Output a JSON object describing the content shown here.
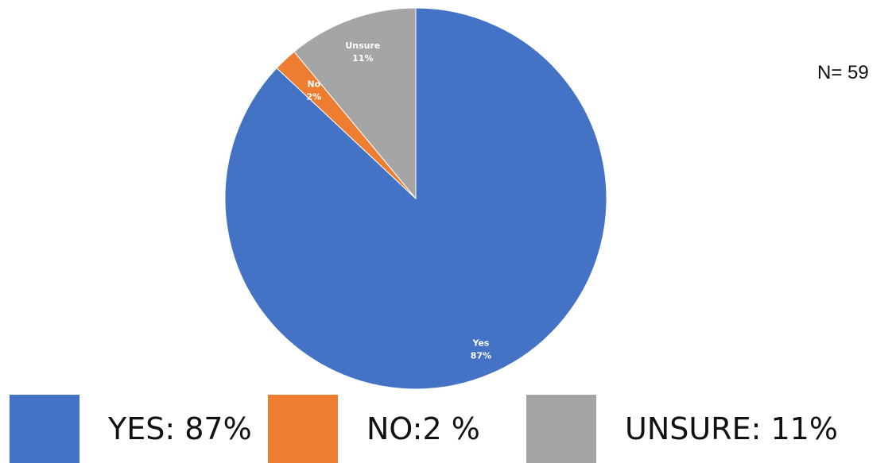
{
  "chart_data": {
    "type": "pie",
    "title": "",
    "slices": [
      {
        "label": "Yes",
        "value": 87,
        "value_label": "87%",
        "color": "#4472C4"
      },
      {
        "label": "No",
        "value": 2,
        "value_label": "2%",
        "color": "#ED7D31"
      },
      {
        "label": "Unsure",
        "value": 11,
        "value_label": "11%",
        "color": "#A5A5A5"
      }
    ],
    "sample_size_label": "N= 59",
    "legend": {
      "placement": "bottom",
      "entries": [
        {
          "name": "YES:",
          "value": " 87%",
          "color": "#4472C4"
        },
        {
          "name": "NO:",
          "value": "2 %",
          "color": "#ED7D31"
        },
        {
          "name": "UNSURE:",
          "value": " 11%",
          "color": "#A5A5A5"
        }
      ]
    }
  }
}
